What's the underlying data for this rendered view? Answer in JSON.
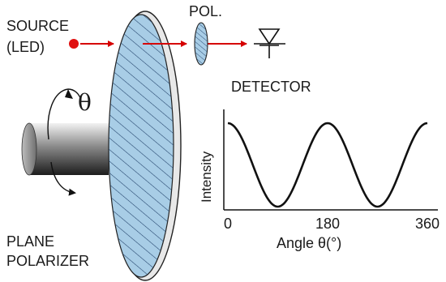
{
  "labels": {
    "source_line1": "SOURCE",
    "source_line2": "(LED)",
    "polarizer_small": "POL.",
    "detector": "DETECTOR",
    "plane_line1": "PLANE",
    "plane_line2": "POLARIZER",
    "rotation_symbol": "θ"
  },
  "chart_data": {
    "type": "line",
    "title": "",
    "xlabel": "Angle θ(°)",
    "ylabel": "Intensity",
    "xlim": [
      0,
      360
    ],
    "xticks": [
      "0",
      "180",
      "360"
    ],
    "grid": false,
    "series": [
      {
        "x": [
          0,
          90,
          180,
          270,
          360
        ],
        "y": [
          1,
          0,
          1,
          0,
          1
        ]
      }
    ]
  },
  "colors": {
    "beam": "#d60000",
    "led": "#e01010",
    "polarizer_fill": "#a8cde6",
    "hatch": "#1d3d66",
    "curve": "#111111"
  }
}
